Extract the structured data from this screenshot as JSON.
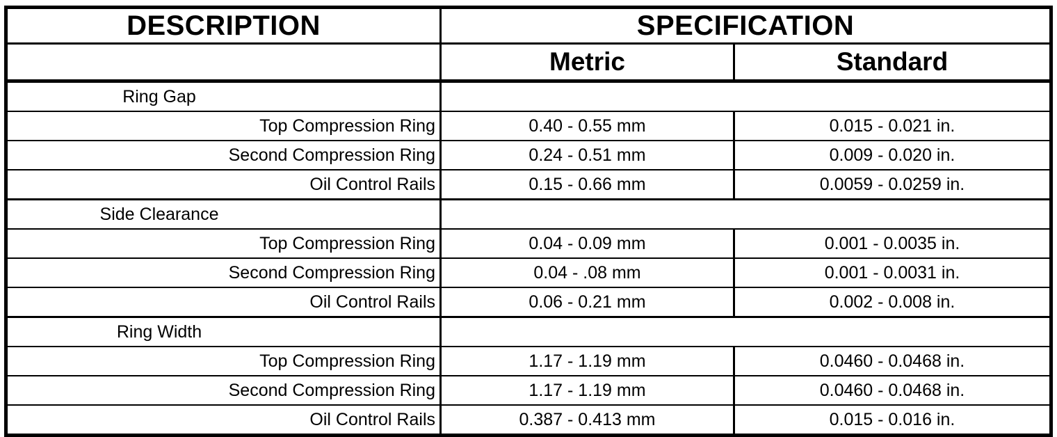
{
  "table": {
    "title_row": {
      "description": "DESCRIPTION",
      "specification": "SPECIFICATION"
    },
    "unit_row": {
      "metric": "Metric",
      "standard": "Standard"
    },
    "rows": [
      {
        "type": "section",
        "description": "Ring Gap",
        "metric": "",
        "standard": ""
      },
      {
        "type": "data",
        "description": "Top Compression Ring",
        "metric": "0.40 - 0.55 mm",
        "standard": "0.015 - 0.021 in."
      },
      {
        "type": "data",
        "description": "Second Compression Ring",
        "metric": "0.24 - 0.51 mm",
        "standard": "0.009 - 0.020 in."
      },
      {
        "type": "data",
        "description": "Oil Control Rails",
        "metric": "0.15 - 0.66 mm",
        "standard": "0.0059 - 0.0259 in."
      },
      {
        "type": "section",
        "description": "Side Clearance",
        "metric": "",
        "standard": ""
      },
      {
        "type": "data",
        "description": "Top Compression Ring",
        "metric": "0.04 - 0.09 mm",
        "standard": "0.001 - 0.0035 in."
      },
      {
        "type": "data",
        "description": "Second Compression Ring",
        "metric": "0.04 - .08 mm",
        "standard": "0.001 - 0.0031 in."
      },
      {
        "type": "data",
        "description": "Oil Control Rails",
        "metric": "0.06 - 0.21 mm",
        "standard": "0.002 - 0.008 in."
      },
      {
        "type": "section",
        "description": "Ring Width",
        "metric": "",
        "standard": ""
      },
      {
        "type": "data",
        "description": "Top Compression Ring",
        "metric": "1.17 - 1.19 mm",
        "standard": "0.0460 - 0.0468 in."
      },
      {
        "type": "data",
        "description": "Second Compression Ring",
        "metric": "1.17 - 1.19 mm",
        "standard": "0.0460 - 0.0468 in."
      },
      {
        "type": "data",
        "description": "Oil Control Rails",
        "metric": "0.387 - 0.413 mm",
        "standard": "0.015 - 0.016 in."
      }
    ],
    "colors": {
      "border": "#000000",
      "background": "#ffffff",
      "text": "#000000"
    }
  }
}
